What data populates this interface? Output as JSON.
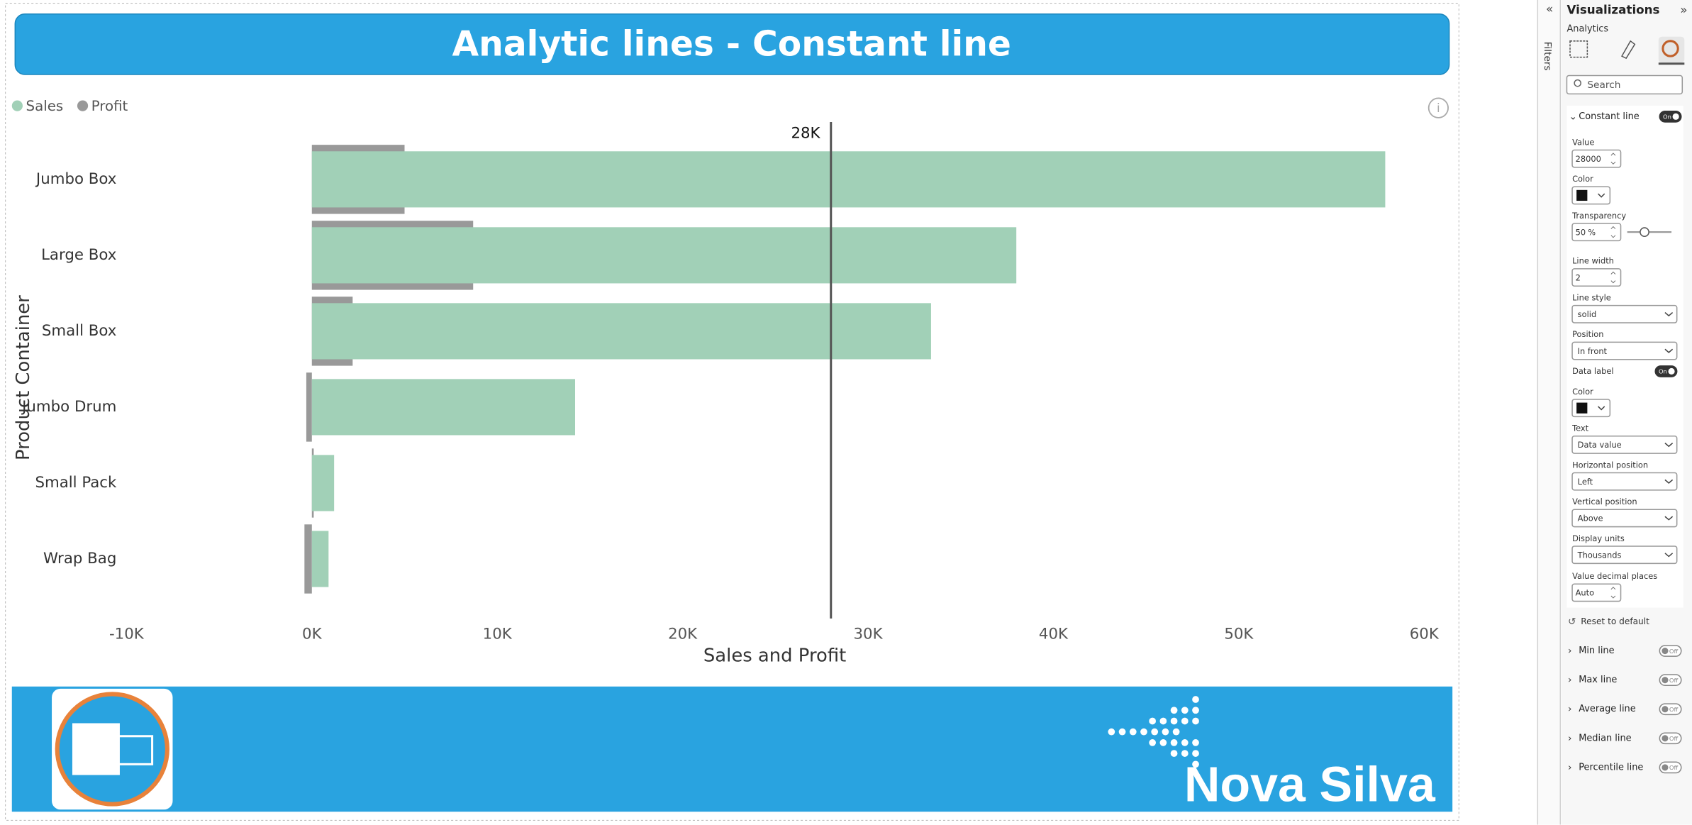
{
  "chart_data": {
    "type": "bar",
    "orientation": "horizontal",
    "title": "Analytic lines - Constant line",
    "y_label": "Product Container",
    "x_label": "Sales and Profit",
    "categories": [
      "Jumbo Box",
      "Large Box",
      "Small Box",
      "Jumbo Drum",
      "Small Pack",
      "Wrap Bag"
    ],
    "series": [
      {
        "name": "Sales",
        "color": "#a1d0b7",
        "values": [
          57900,
          38000,
          33400,
          14200,
          1200,
          900
        ]
      },
      {
        "name": "Profit",
        "color": "#999999",
        "values": [
          5000,
          8700,
          2200,
          -300,
          100,
          -400
        ]
      }
    ],
    "xlim": [
      -10000,
      60000
    ],
    "xticks": [
      {
        "value": -10000,
        "label": "-10K"
      },
      {
        "value": 0,
        "label": "0K"
      },
      {
        "value": 10000,
        "label": "10K"
      },
      {
        "value": 20000,
        "label": "20K"
      },
      {
        "value": 30000,
        "label": "30K"
      },
      {
        "value": 40000,
        "label": "40K"
      },
      {
        "value": 50000,
        "label": "50K"
      },
      {
        "value": 60000,
        "label": "60K"
      }
    ],
    "constant_line": {
      "value": 28000,
      "label": "28K",
      "color": "#555555"
    },
    "legend": "top-left"
  },
  "panel": {
    "title": "Visualizations",
    "tab": "Analytics",
    "filters": "Filters",
    "search": "Search",
    "constant_line": {
      "name": "Constant line",
      "toggle": "On",
      "fields": [
        {
          "label": "Value",
          "value": 28000
        },
        {
          "label": "Color"
        },
        {
          "label": "Transparency",
          "value": 50,
          "unit": "%"
        },
        {
          "label": "Line width",
          "value": 2
        },
        {
          "label": "Line style",
          "value": "solid"
        },
        {
          "label": "Position",
          "value": "In front"
        },
        {
          "label": "Data label",
          "value": "On"
        },
        {
          "label": "Color"
        },
        {
          "label": "Text",
          "value": "Data value"
        },
        {
          "label": "Horizontal position",
          "value": "Left"
        },
        {
          "label": "Vertical position",
          "value": "Above"
        },
        {
          "label": "Display units",
          "value": "Thousands"
        },
        {
          "label": "Value decimal places",
          "value": "Auto"
        }
      ]
    },
    "reset": "Reset to default",
    "other_lines": [
      {
        "name": "Min line",
        "toggle": "Off"
      },
      {
        "name": "Max line",
        "toggle": "Off"
      },
      {
        "name": "Average line",
        "toggle": "Off"
      },
      {
        "name": "Median line",
        "toggle": "Off"
      },
      {
        "name": "Percentile line",
        "toggle": "Off"
      }
    ]
  },
  "footer": {
    "brand": "Nova Silva"
  }
}
